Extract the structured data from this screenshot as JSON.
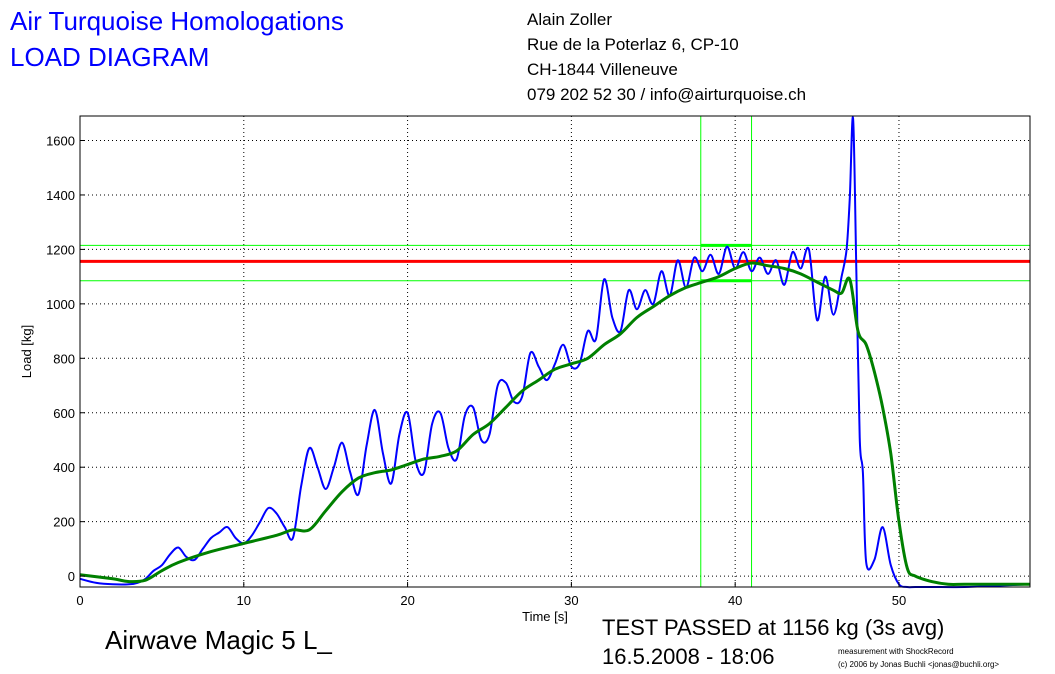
{
  "header": {
    "title": "Air Turquoise Homologations",
    "subtitle": "LOAD DIAGRAM",
    "address_lines": [
      "Alain Zoller",
      "Rue de la Poterlaz 6, CP-10",
      "CH-1844 Villeneuve",
      "079 202 52 30 / info@airturquoise.ch"
    ]
  },
  "footer": {
    "product": "Airwave Magic 5 L_",
    "status": "TEST PASSED at 1156 kg (3s avg)",
    "datetime": "16.5.2008 - 18:06",
    "credit_line1": "measurement with ShockRecord",
    "credit_line2": "(c) 2006 by Jonas Buchli <jonas@buchli.org>"
  },
  "colors": {
    "raw": "#0000ff",
    "average": "#008000",
    "limit": "#ff0000",
    "window": "#00ff00",
    "title": "#0000ff"
  },
  "chart_data": {
    "type": "line",
    "xlabel": "Time [s]",
    "ylabel": "Load [kg]",
    "xlim": [
      0,
      58
    ],
    "ylim": [
      -40,
      1690
    ],
    "xticks": [
      0,
      10,
      20,
      30,
      40,
      50
    ],
    "yticks": [
      0,
      200,
      400,
      600,
      800,
      1000,
      1200,
      1400,
      1600
    ],
    "grid": true,
    "limit_line": 1156,
    "window": {
      "x": [
        37.9,
        41.0
      ],
      "y": [
        1085,
        1215
      ]
    },
    "series": [
      {
        "key": "raw",
        "x": [
          0,
          1,
          2,
          3,
          3.5,
          4,
          4.5,
          5,
          5.5,
          6,
          6.5,
          7,
          7.5,
          8,
          8.5,
          9,
          9.5,
          10,
          10.5,
          11,
          11.5,
          12,
          12.5,
          13,
          13.5,
          14,
          14.5,
          15,
          15.5,
          16,
          16.5,
          17,
          17.5,
          18,
          18.5,
          19,
          19.5,
          20,
          20.5,
          21,
          21.5,
          22,
          22.5,
          23,
          23.5,
          24,
          24.5,
          25,
          25.5,
          26,
          26.5,
          27,
          27.5,
          28,
          28.5,
          29,
          29.5,
          30,
          30.5,
          31,
          31.5,
          32,
          32.5,
          33,
          33.5,
          34,
          34.5,
          35,
          35.5,
          36,
          36.5,
          37,
          37.5,
          38,
          38.5,
          39,
          39.5,
          40,
          40.5,
          41,
          41.5,
          42,
          42.5,
          43,
          43.5,
          44,
          44.5,
          45,
          45.5,
          46,
          46.5,
          46.8,
          47,
          47.2,
          47.4,
          47.6,
          47.8,
          48,
          48.5,
          49,
          49.5,
          50,
          50.5,
          51,
          52,
          54,
          56,
          58
        ],
        "y": [
          -10,
          -25,
          -30,
          -30,
          -25,
          -10,
          20,
          40,
          80,
          105,
          70,
          60,
          100,
          140,
          160,
          180,
          140,
          120,
          150,
          200,
          250,
          230,
          180,
          140,
          330,
          470,
          400,
          320,
          400,
          490,
          380,
          300,
          480,
          610,
          450,
          340,
          520,
          600,
          420,
          380,
          560,
          600,
          470,
          430,
          590,
          620,
          500,
          520,
          700,
          710,
          640,
          660,
          820,
          770,
          720,
          780,
          850,
          770,
          780,
          900,
          870,
          1090,
          950,
          900,
          1050,
          980,
          1050,
          1000,
          1120,
          1030,
          1160,
          1060,
          1170,
          1120,
          1180,
          1110,
          1210,
          1130,
          1190,
          1120,
          1170,
          1110,
          1160,
          1070,
          1190,
          1130,
          1200,
          940,
          1100,
          960,
          1100,
          1200,
          1390,
          1680,
          1110,
          510,
          380,
          50,
          60,
          180,
          40,
          -30,
          -40,
          -40,
          -40,
          -40,
          -35,
          -30
        ]
      },
      {
        "key": "average",
        "x": [
          0,
          2,
          3,
          4,
          5,
          6,
          8,
          10,
          12,
          13,
          14,
          15,
          16,
          17,
          18,
          19,
          20,
          21,
          22,
          23,
          24,
          25,
          26,
          27,
          28,
          29,
          30,
          31,
          32,
          33,
          34,
          35,
          36,
          37,
          38,
          39,
          40,
          41,
          42,
          43,
          44,
          45,
          46,
          46.5,
          47,
          47.5,
          48,
          48.5,
          49,
          49.5,
          50,
          50.5,
          51,
          52,
          53,
          54,
          56,
          58
        ],
        "y": [
          5,
          -10,
          -20,
          -15,
          20,
          50,
          90,
          120,
          150,
          170,
          170,
          240,
          310,
          360,
          380,
          390,
          410,
          430,
          440,
          460,
          520,
          560,
          620,
          680,
          720,
          760,
          780,
          800,
          850,
          890,
          950,
          990,
          1030,
          1060,
          1080,
          1100,
          1130,
          1150,
          1140,
          1130,
          1110,
          1080,
          1050,
          1040,
          1090,
          900,
          850,
          750,
          620,
          450,
          200,
          30,
          0,
          -20,
          -30,
          -30,
          -30,
          -30
        ]
      }
    ]
  }
}
